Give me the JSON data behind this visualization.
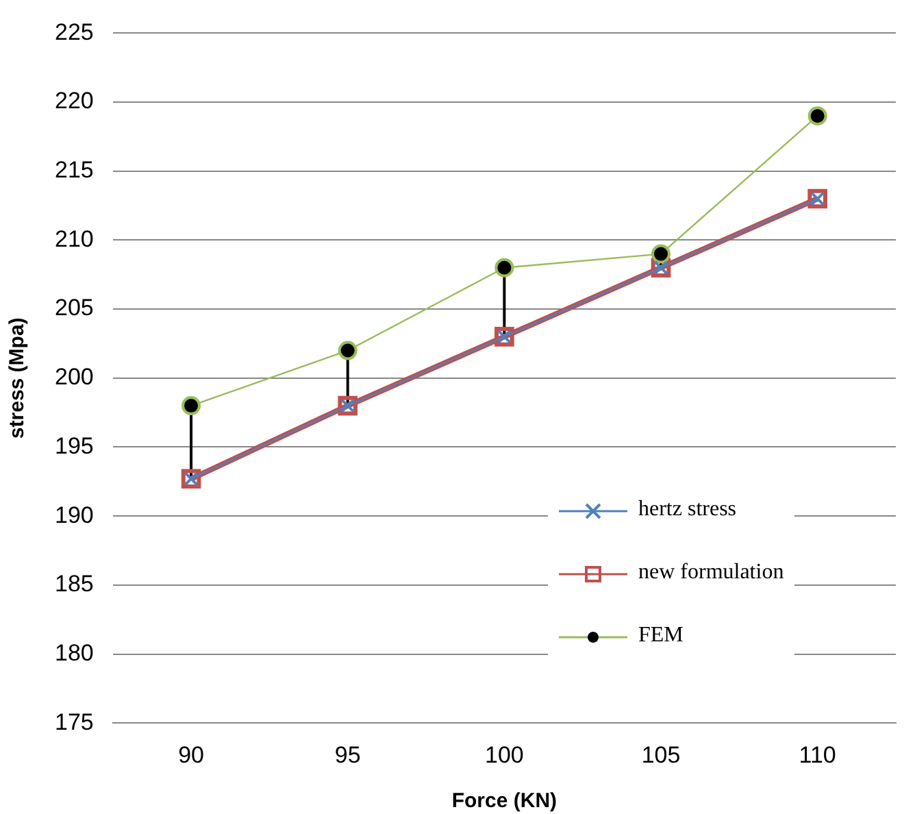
{
  "chart_data": {
    "type": "line",
    "xlabel": "Force (KN)",
    "ylabel": "stress (Mpa)",
    "categories": [
      "90",
      "95",
      "100",
      "105",
      "110"
    ],
    "series": [
      {
        "name": "hertz stress",
        "color": "#4f81bd",
        "marker": "cross",
        "values": [
          192.7,
          198,
          203,
          208,
          213
        ]
      },
      {
        "name": "new formulation",
        "color": "#c0504d",
        "marker": "square",
        "values": [
          192.7,
          198,
          203,
          208,
          213
        ]
      },
      {
        "name": "FEM",
        "color": "#9bbb59",
        "marker": "circle",
        "values": [
          198,
          202,
          208,
          209,
          219
        ],
        "errors": [
          [
            192.7,
            198
          ],
          [
            198,
            202
          ],
          [
            203,
            208
          ],
          [
            208,
            209
          ],
          null
        ]
      }
    ],
    "ylim": [
      175,
      225
    ],
    "yticks": [
      175,
      180,
      185,
      190,
      195,
      200,
      205,
      210,
      215,
      220,
      225
    ],
    "grid": "y",
    "legend": "right"
  }
}
